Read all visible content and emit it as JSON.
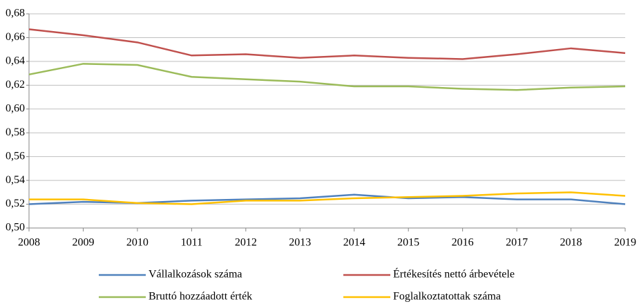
{
  "chart_data": {
    "type": "line",
    "categories": [
      "2008",
      "2009",
      "2010",
      "1011",
      "2012",
      "2013",
      "2014",
      "2015",
      "2016",
      "2017",
      "2018",
      "2019"
    ],
    "series": [
      {
        "name": "Vállalkozások száma",
        "color": "#4f81bd",
        "values": [
          0.52,
          0.522,
          0.521,
          0.523,
          0.524,
          0.525,
          0.528,
          0.525,
          0.526,
          0.524,
          0.524,
          0.52
        ]
      },
      {
        "name": "Értékesítés nettó árbevétele",
        "color": "#c0504d",
        "values": [
          0.667,
          0.662,
          0.656,
          0.645,
          0.646,
          0.643,
          0.645,
          0.643,
          0.642,
          0.646,
          0.651,
          0.647
        ]
      },
      {
        "name": "Bruttó hozzáadott érték",
        "color": "#9bbb59",
        "values": [
          0.629,
          0.638,
          0.637,
          0.627,
          0.625,
          0.623,
          0.619,
          0.619,
          0.617,
          0.616,
          0.618,
          0.619
        ]
      },
      {
        "name": "Foglalkoztatottak száma",
        "color": "#ffc000",
        "values": [
          0.524,
          0.524,
          0.521,
          0.52,
          0.523,
          0.523,
          0.525,
          0.526,
          0.527,
          0.529,
          0.53,
          0.527
        ]
      }
    ],
    "ylim": [
      0.5,
      0.68
    ],
    "yticks": [
      {
        "value": 0.5,
        "label": "0,50"
      },
      {
        "value": 0.52,
        "label": "0,52"
      },
      {
        "value": 0.54,
        "label": "0,54"
      },
      {
        "value": 0.56,
        "label": "0,56"
      },
      {
        "value": 0.58,
        "label": "0,58"
      },
      {
        "value": 0.6,
        "label": "0,60"
      },
      {
        "value": 0.62,
        "label": "0,62"
      },
      {
        "value": 0.64,
        "label": "0,64"
      },
      {
        "value": 0.66,
        "label": "0,66"
      },
      {
        "value": 0.68,
        "label": "0,68"
      }
    ],
    "grid": true,
    "legend": "bottom"
  }
}
